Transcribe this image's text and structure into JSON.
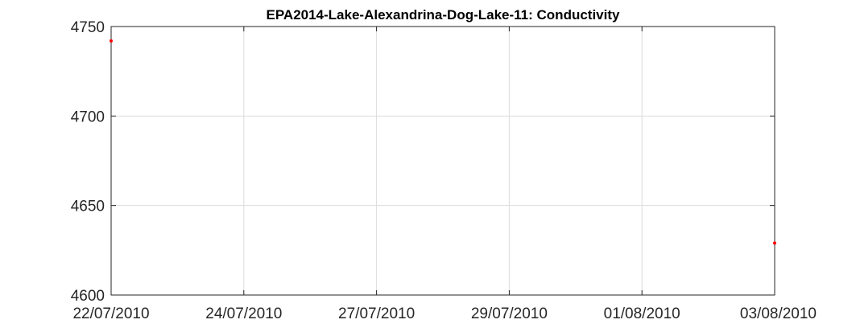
{
  "chart_data": {
    "type": "scatter",
    "title": "EPA2014-Lake-Alexandrina-Dog-Lake-11: Conductivity",
    "xlabel": "",
    "ylabel": "",
    "x_axis": {
      "kind": "date",
      "range": [
        "22/07/2010",
        "03/08/2010"
      ],
      "tick_labels": [
        "22/07/2010",
        "24/07/2010",
        "27/07/2010",
        "29/07/2010",
        "01/08/2010",
        "03/08/2010"
      ]
    },
    "y_axis": {
      "range": [
        4600,
        4750
      ],
      "ticks": [
        4600,
        4650,
        4700,
        4750
      ],
      "tick_labels": [
        "4600",
        "4650",
        "4700",
        "4750"
      ]
    },
    "grid": true,
    "series": [
      {
        "color": "#ff0000",
        "points": [
          {
            "x": "22/07/2010",
            "y": 4742
          },
          {
            "x": "03/08/2010",
            "y": 4629
          }
        ]
      }
    ]
  }
}
